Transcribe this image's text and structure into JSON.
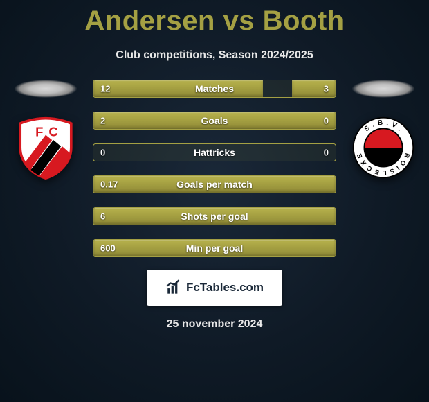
{
  "title": "Andersen vs Booth",
  "subtitle": "Club competitions, Season 2024/2025",
  "date": "25 november 2024",
  "footer_brand": "FcTables.com",
  "colors": {
    "accent": "#a4a043",
    "bar_fill_top": "#b7b24c",
    "bar_fill_bottom": "#8f8a36",
    "text_light": "#e8e8e8",
    "bg_inner": "#1a2838",
    "bg_outer": "#08121b"
  },
  "crests": {
    "left": {
      "name": "FC Utrecht",
      "shield_bg": "#ffffff",
      "stripe1": "#d71920",
      "stripe2": "#000000",
      "letters": "FC"
    },
    "right": {
      "name": "S.B.V. Excelsior",
      "ring_bg": "#ffffff",
      "ring_text": "S.B.V.  EXCELSIOR",
      "top_color": "#d71920",
      "bottom_color": "#000000"
    }
  },
  "stats": [
    {
      "label": "Matches",
      "left_val": "12",
      "right_val": "3",
      "left_pct": 70,
      "right_pct": 18
    },
    {
      "label": "Goals",
      "left_val": "2",
      "right_val": "0",
      "left_pct": 100,
      "right_pct": 0
    },
    {
      "label": "Hattricks",
      "left_val": "0",
      "right_val": "0",
      "left_pct": 0,
      "right_pct": 0
    },
    {
      "label": "Goals per match",
      "left_val": "0.17",
      "right_val": "",
      "left_pct": 100,
      "right_pct": 0
    },
    {
      "label": "Shots per goal",
      "left_val": "6",
      "right_val": "",
      "left_pct": 100,
      "right_pct": 0
    },
    {
      "label": "Min per goal",
      "left_val": "600",
      "right_val": "",
      "left_pct": 100,
      "right_pct": 0
    }
  ]
}
